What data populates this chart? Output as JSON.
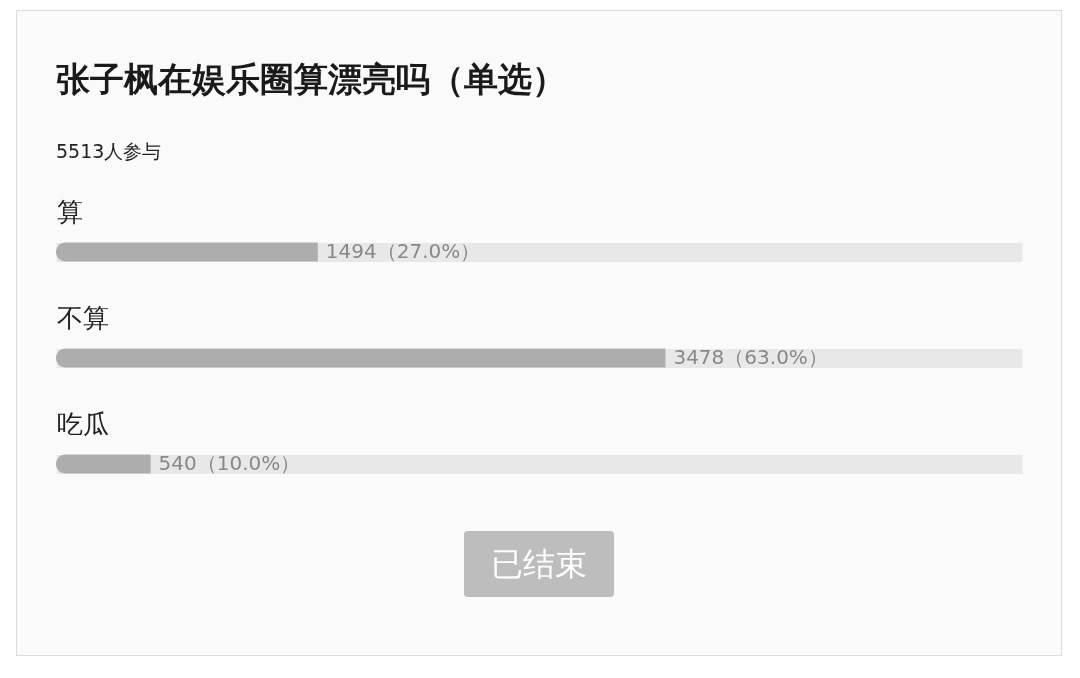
{
  "chart_data": {
    "type": "bar",
    "orientation": "horizontal",
    "title": "张子枫在娱乐圈算漂亮吗（单选）",
    "subtitle": "5513人参与",
    "categories": [
      "算",
      "不算",
      "吃瓜"
    ],
    "values": [
      1494,
      3478,
      540
    ],
    "color": "#adadad",
    "value_labels": [
      "1494（27.0%）",
      "3478（63.0%）",
      "540（10.0%）"
    ],
    "xlim": [
      0,
      5513
    ],
    "tick_labels": "y",
    "grid": "y",
    "annotations": [
      "已结束"
    ]
  }
}
